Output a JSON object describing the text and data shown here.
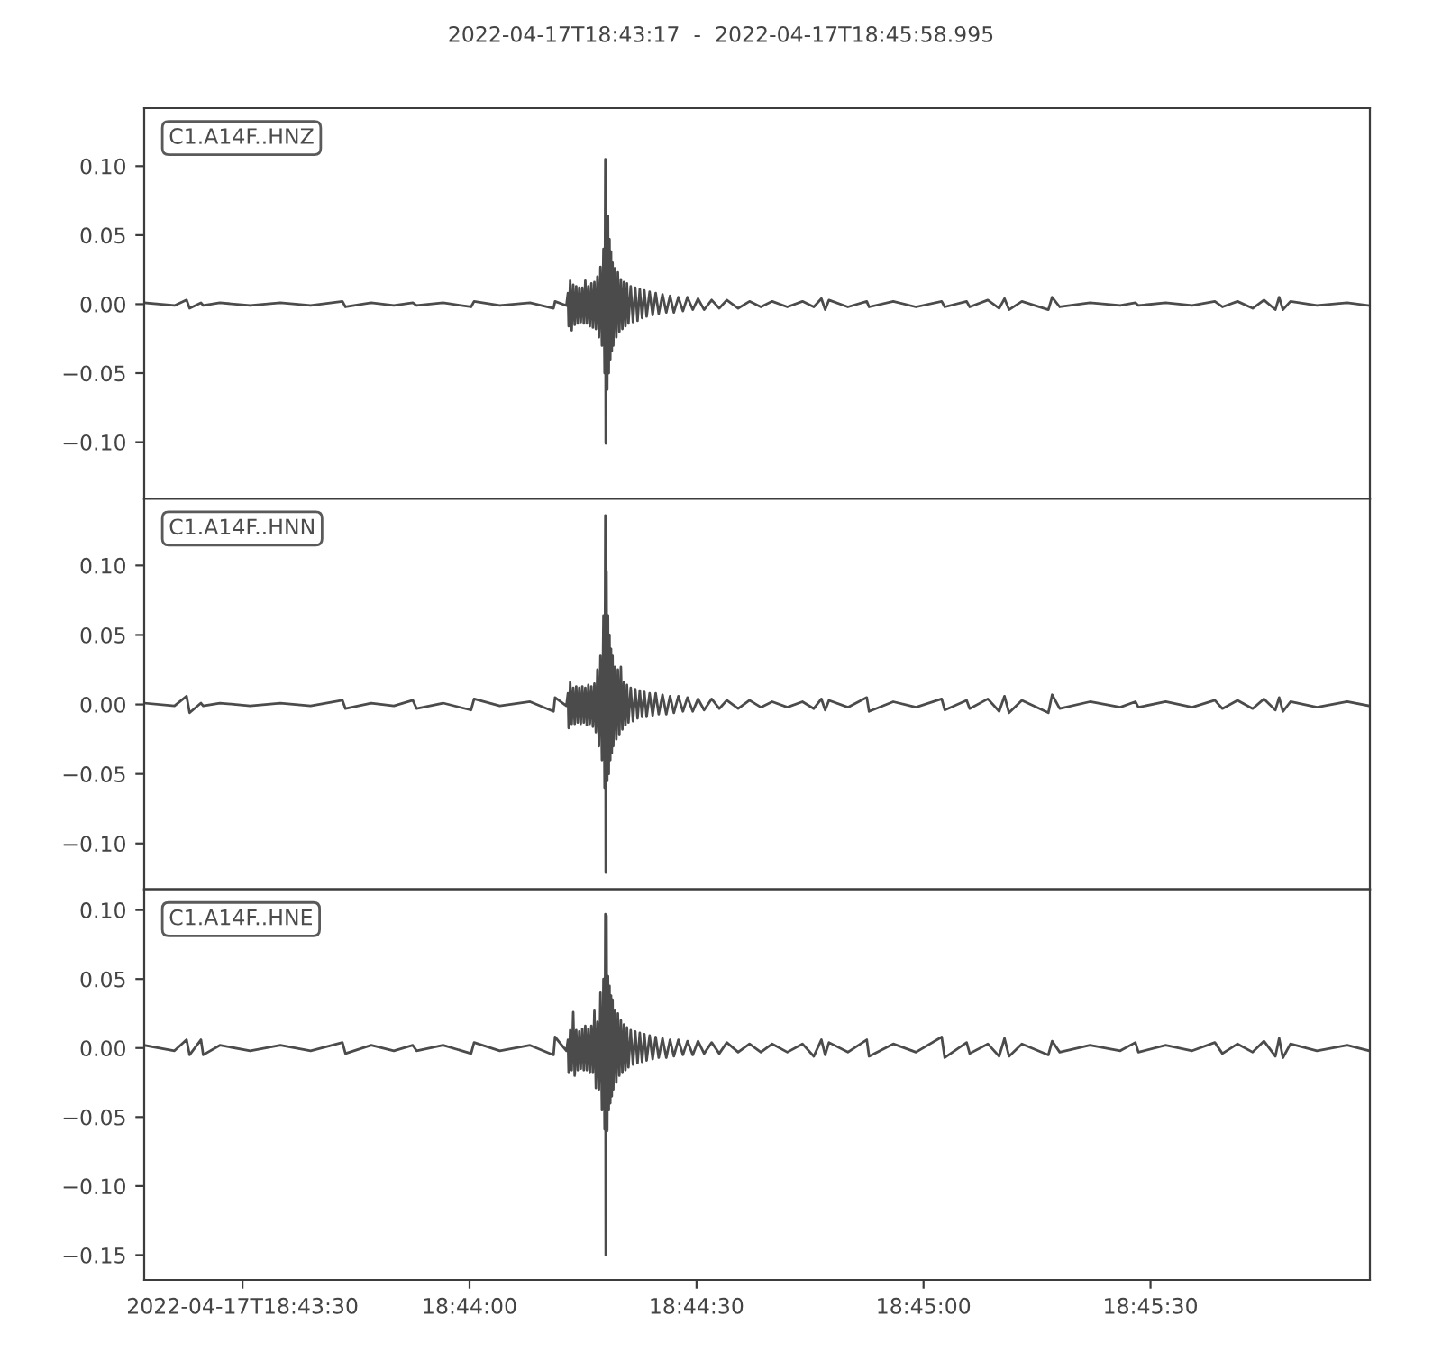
{
  "chart_data": [
    {
      "type": "line",
      "title": "2022-04-17T18:43:17  -  2022-04-17T18:45:58.995",
      "line_style": "solid",
      "tick_labels": "y",
      "xlim": [
        "2022-04-17T18:43:17",
        "2022-04-17T18:45:58.995"
      ],
      "ylim": [
        -0.141,
        0.142
      ],
      "yticks": [
        {
          "value": -0.1,
          "label": "−0.10"
        },
        {
          "value": -0.05,
          "label": "−0.05"
        },
        {
          "value": 0.0,
          "label": "0.00"
        },
        {
          "value": 0.05,
          "label": "0.05"
        },
        {
          "value": 0.1,
          "label": "0.10"
        }
      ],
      "x": [
        "2022-04-17T18:43:17",
        "2022-04-17T18:43:21",
        "2022-04-17T18:43:22.6",
        "2022-04-17T18:43:23",
        "2022-04-17T18:43:24.5",
        "2022-04-17T18:43:24.8",
        "2022-04-17T18:43:27",
        "2022-04-17T18:43:31",
        "2022-04-17T18:43:35",
        "2022-04-17T18:43:39",
        "2022-04-17T18:43:43.2",
        "2022-04-17T18:43:43.6",
        "2022-04-17T18:43:47",
        "2022-04-17T18:43:50",
        "2022-04-17T18:43:52.5",
        "2022-04-17T18:43:53",
        "2022-04-17T18:43:56.5",
        "2022-04-17T18:44:00.2",
        "2022-04-17T18:44:00.6",
        "2022-04-17T18:44:04",
        "2022-04-17T18:44:08",
        "2022-04-17T18:44:11.1",
        "2022-04-17T18:44:11.3",
        "2022-04-17T18:44:12.8",
        "2022-04-17T18:44:13",
        "2022-04-17T18:44:13.1",
        "2022-04-17T18:44:13.3",
        "2022-04-17T18:44:13.5",
        "2022-04-17T18:44:13.7",
        "2022-04-17T18:44:13.9",
        "2022-04-17T18:44:14.1",
        "2022-04-17T18:44:14.3",
        "2022-04-17T18:44:14.5",
        "2022-04-17T18:44:14.7",
        "2022-04-17T18:44:14.9",
        "2022-04-17T18:44:15.1",
        "2022-04-17T18:44:15.3",
        "2022-04-17T18:44:15.5",
        "2022-04-17T18:44:15.7",
        "2022-04-17T18:44:15.9",
        "2022-04-17T18:44:16.1",
        "2022-04-17T18:44:16.3",
        "2022-04-17T18:44:16.5",
        "2022-04-17T18:44:16.7",
        "2022-04-17T18:44:16.9",
        "2022-04-17T18:44:17.1",
        "2022-04-17T18:44:17.3",
        "2022-04-17T18:44:17.5",
        "2022-04-17T18:44:17.7",
        "2022-04-17T18:44:17.85",
        "2022-04-17T18:44:17.95",
        "2022-04-17T18:44:18",
        "2022-04-17T18:44:18.1",
        "2022-04-17T18:44:18.2",
        "2022-04-17T18:44:18.3",
        "2022-04-17T18:44:18.4",
        "2022-04-17T18:44:18.5",
        "2022-04-17T18:44:18.6",
        "2022-04-17T18:44:18.7",
        "2022-04-17T18:44:18.8",
        "2022-04-17T18:44:18.9",
        "2022-04-17T18:44:19",
        "2022-04-17T18:44:19.2",
        "2022-04-17T18:44:19.4",
        "2022-04-17T18:44:19.6",
        "2022-04-17T18:44:19.8",
        "2022-04-17T18:44:20",
        "2022-04-17T18:44:20.2",
        "2022-04-17T18:44:20.4",
        "2022-04-17T18:44:20.6",
        "2022-04-17T18:44:20.8",
        "2022-04-17T18:44:21",
        "2022-04-17T18:44:21.3",
        "2022-04-17T18:44:21.6",
        "2022-04-17T18:44:21.9",
        "2022-04-17T18:44:22.2",
        "2022-04-17T18:44:22.5",
        "2022-04-17T18:44:22.8",
        "2022-04-17T18:44:23.1",
        "2022-04-17T18:44:23.4",
        "2022-04-17T18:44:23.8",
        "2022-04-17T18:44:24.2",
        "2022-04-17T18:44:24.6",
        "2022-04-17T18:44:25",
        "2022-04-17T18:44:25.5",
        "2022-04-17T18:44:26",
        "2022-04-17T18:44:26.5",
        "2022-04-17T18:44:27",
        "2022-04-17T18:44:27.6",
        "2022-04-17T18:44:28.2",
        "2022-04-17T18:44:28.8",
        "2022-04-17T18:44:29.5",
        "2022-04-17T18:44:30.2",
        "2022-04-17T18:44:31",
        "2022-04-17T18:44:32",
        "2022-04-17T18:44:33",
        "2022-04-17T18:44:34",
        "2022-04-17T18:44:35.5",
        "2022-04-17T18:44:37",
        "2022-04-17T18:44:38.5",
        "2022-04-17T18:44:40",
        "2022-04-17T18:44:42",
        "2022-04-17T18:44:44",
        "2022-04-17T18:44:45.5",
        "2022-04-17T18:44:46.5",
        "2022-04-17T18:44:47",
        "2022-04-17T18:44:47.5",
        "2022-04-17T18:44:50",
        "2022-04-17T18:44:52.5",
        "2022-04-17T18:44:52.8",
        "2022-04-17T18:44:56",
        "2022-04-17T18:44:59",
        "2022-04-17T18:45:02.4",
        "2022-04-17T18:45:02.8",
        "2022-04-17T18:45:05.7",
        "2022-04-17T18:45:06.1",
        "2022-04-17T18:45:08.5",
        "2022-04-17T18:45:10",
        "2022-04-17T18:45:10.7",
        "2022-04-17T18:45:11.3",
        "2022-04-17T18:45:13",
        "2022-04-17T18:45:16.5",
        "2022-04-17T18:45:17",
        "2022-04-17T18:45:18",
        "2022-04-17T18:45:22",
        "2022-04-17T18:45:26",
        "2022-04-17T18:45:28",
        "2022-04-17T18:45:28.4",
        "2022-04-17T18:45:32",
        "2022-04-17T18:45:35.5",
        "2022-04-17T18:45:38.5",
        "2022-04-17T18:45:39.5",
        "2022-04-17T18:45:41.5",
        "2022-04-17T18:45:43.5",
        "2022-04-17T18:45:45",
        "2022-04-17T18:45:46.5",
        "2022-04-17T18:45:47",
        "2022-04-17T18:45:47.5",
        "2022-04-17T18:45:48.5",
        "2022-04-17T18:45:52",
        "2022-04-17T18:45:56",
        "2022-04-17T18:45:58.9"
      ],
      "series": [
        {
          "name": "C1.A14F..HNZ",
          "color": "#4b4b4b",
          "values": [
            0.001,
            -0.001,
            0.003,
            -0.003,
            0.001,
            -0.001,
            0.001,
            -0.001,
            0.001,
            -0.001,
            0.002,
            -0.002,
            0.001,
            -0.001,
            0.001,
            -0.001,
            0.001,
            -0.002,
            0.002,
            -0.001,
            0.001,
            -0.003,
            0.002,
            -0.001,
            0.008,
            -0.016,
            0.017,
            -0.019,
            0.014,
            -0.015,
            0.013,
            -0.014,
            0.012,
            -0.013,
            0.012,
            -0.014,
            0.017,
            -0.014,
            0.013,
            -0.016,
            0.015,
            -0.017,
            0.016,
            -0.018,
            0.02,
            -0.024,
            0.027,
            -0.03,
            0.04,
            -0.05,
            0.105,
            -0.101,
            0.06,
            -0.062,
            0.064,
            -0.05,
            0.047,
            -0.04,
            0.038,
            -0.034,
            0.03,
            -0.03,
            0.026,
            -0.024,
            0.023,
            -0.02,
            0.018,
            -0.018,
            0.016,
            -0.016,
            0.015,
            -0.014,
            0.013,
            -0.013,
            0.012,
            -0.012,
            0.011,
            -0.01,
            0.01,
            -0.009,
            0.009,
            -0.008,
            0.008,
            -0.007,
            0.007,
            -0.006,
            0.006,
            -0.006,
            0.005,
            -0.005,
            0.005,
            -0.004,
            0.004,
            -0.004,
            0.003,
            -0.003,
            0.003,
            -0.003,
            0.002,
            -0.002,
            0.002,
            -0.002,
            0.002,
            -0.002,
            0.004,
            -0.004,
            0.003,
            -0.002,
            0.002,
            -0.002,
            0.002,
            -0.002,
            0.002,
            -0.002,
            0.002,
            -0.002,
            0.003,
            -0.003,
            0.004,
            -0.004,
            0.002,
            -0.004,
            0.005,
            -0.002,
            0.001,
            -0.001,
            0.001,
            -0.001,
            0.001,
            -0.001,
            0.002,
            -0.002,
            0.002,
            -0.003,
            0.003,
            -0.004,
            0.005,
            -0.004,
            0.002,
            -0.001,
            0.001,
            -0.001
          ]
        }
      ]
    },
    {
      "type": "line",
      "line_style": "solid",
      "tick_labels": "y",
      "xlim": [
        "2022-04-17T18:43:17",
        "2022-04-17T18:45:58.995"
      ],
      "ylim": [
        -0.133,
        0.148
      ],
      "yticks": [
        {
          "value": -0.1,
          "label": "−0.10"
        },
        {
          "value": -0.05,
          "label": "−0.05"
        },
        {
          "value": 0.0,
          "label": "0.00"
        },
        {
          "value": 0.05,
          "label": "0.05"
        },
        {
          "value": 0.1,
          "label": "0.10"
        }
      ],
      "x": [
        "2022-04-17T18:43:17",
        "2022-04-17T18:43:21",
        "2022-04-17T18:43:22.6",
        "2022-04-17T18:43:23",
        "2022-04-17T18:43:24.5",
        "2022-04-17T18:43:24.8",
        "2022-04-17T18:43:27",
        "2022-04-17T18:43:31",
        "2022-04-17T18:43:35",
        "2022-04-17T18:43:39",
        "2022-04-17T18:43:43.2",
        "2022-04-17T18:43:43.6",
        "2022-04-17T18:43:47",
        "2022-04-17T18:43:50",
        "2022-04-17T18:43:52.5",
        "2022-04-17T18:43:53",
        "2022-04-17T18:43:56.5",
        "2022-04-17T18:44:00.2",
        "2022-04-17T18:44:00.6",
        "2022-04-17T18:44:04",
        "2022-04-17T18:44:08",
        "2022-04-17T18:44:11.1",
        "2022-04-17T18:44:11.3",
        "2022-04-17T18:44:12.8",
        "2022-04-17T18:44:13",
        "2022-04-17T18:44:13.1",
        "2022-04-17T18:44:13.3",
        "2022-04-17T18:44:13.5",
        "2022-04-17T18:44:13.7",
        "2022-04-17T18:44:13.9",
        "2022-04-17T18:44:14.1",
        "2022-04-17T18:44:14.3",
        "2022-04-17T18:44:14.5",
        "2022-04-17T18:44:14.7",
        "2022-04-17T18:44:14.9",
        "2022-04-17T18:44:15.1",
        "2022-04-17T18:44:15.3",
        "2022-04-17T18:44:15.5",
        "2022-04-17T18:44:15.7",
        "2022-04-17T18:44:15.9",
        "2022-04-17T18:44:16.1",
        "2022-04-17T18:44:16.3",
        "2022-04-17T18:44:16.5",
        "2022-04-17T18:44:16.7",
        "2022-04-17T18:44:16.9",
        "2022-04-17T18:44:17.1",
        "2022-04-17T18:44:17.3",
        "2022-04-17T18:44:17.5",
        "2022-04-17T18:44:17.7",
        "2022-04-17T18:44:17.85",
        "2022-04-17T18:44:17.95",
        "2022-04-17T18:44:18",
        "2022-04-17T18:44:18.1",
        "2022-04-17T18:44:18.2",
        "2022-04-17T18:44:18.3",
        "2022-04-17T18:44:18.4",
        "2022-04-17T18:44:18.5",
        "2022-04-17T18:44:18.6",
        "2022-04-17T18:44:18.7",
        "2022-04-17T18:44:18.8",
        "2022-04-17T18:44:18.9",
        "2022-04-17T18:44:19",
        "2022-04-17T18:44:19.2",
        "2022-04-17T18:44:19.4",
        "2022-04-17T18:44:19.6",
        "2022-04-17T18:44:19.8",
        "2022-04-17T18:44:20",
        "2022-04-17T18:44:20.2",
        "2022-04-17T18:44:20.4",
        "2022-04-17T18:44:20.6",
        "2022-04-17T18:44:20.8",
        "2022-04-17T18:44:21",
        "2022-04-17T18:44:21.3",
        "2022-04-17T18:44:21.6",
        "2022-04-17T18:44:21.9",
        "2022-04-17T18:44:22.2",
        "2022-04-17T18:44:22.5",
        "2022-04-17T18:44:22.8",
        "2022-04-17T18:44:23.1",
        "2022-04-17T18:44:23.4",
        "2022-04-17T18:44:23.8",
        "2022-04-17T18:44:24.2",
        "2022-04-17T18:44:24.6",
        "2022-04-17T18:44:25",
        "2022-04-17T18:44:25.5",
        "2022-04-17T18:44:26",
        "2022-04-17T18:44:26.5",
        "2022-04-17T18:44:27",
        "2022-04-17T18:44:27.6",
        "2022-04-17T18:44:28.2",
        "2022-04-17T18:44:28.8",
        "2022-04-17T18:44:29.5",
        "2022-04-17T18:44:30.2",
        "2022-04-17T18:44:31",
        "2022-04-17T18:44:32",
        "2022-04-17T18:44:33",
        "2022-04-17T18:44:34",
        "2022-04-17T18:44:35.5",
        "2022-04-17T18:44:37",
        "2022-04-17T18:44:38.5",
        "2022-04-17T18:44:40",
        "2022-04-17T18:44:42",
        "2022-04-17T18:44:44",
        "2022-04-17T18:44:45.5",
        "2022-04-17T18:44:46.5",
        "2022-04-17T18:44:47",
        "2022-04-17T18:44:47.5",
        "2022-04-17T18:44:50",
        "2022-04-17T18:44:52.5",
        "2022-04-17T18:44:52.8",
        "2022-04-17T18:44:56",
        "2022-04-17T18:44:59",
        "2022-04-17T18:45:02.4",
        "2022-04-17T18:45:02.8",
        "2022-04-17T18:45:05.7",
        "2022-04-17T18:45:06.1",
        "2022-04-17T18:45:08.5",
        "2022-04-17T18:45:10",
        "2022-04-17T18:45:10.7",
        "2022-04-17T18:45:11.3",
        "2022-04-17T18:45:13",
        "2022-04-17T18:45:16.5",
        "2022-04-17T18:45:17",
        "2022-04-17T18:45:18",
        "2022-04-17T18:45:22",
        "2022-04-17T18:45:26",
        "2022-04-17T18:45:28",
        "2022-04-17T18:45:28.4",
        "2022-04-17T18:45:32",
        "2022-04-17T18:45:35.5",
        "2022-04-17T18:45:38.5",
        "2022-04-17T18:45:39.5",
        "2022-04-17T18:45:41.5",
        "2022-04-17T18:45:43.5",
        "2022-04-17T18:45:45",
        "2022-04-17T18:45:46.5",
        "2022-04-17T18:45:47",
        "2022-04-17T18:45:47.5",
        "2022-04-17T18:45:48.5",
        "2022-04-17T18:45:52",
        "2022-04-17T18:45:56",
        "2022-04-17T18:45:58.9"
      ],
      "series": [
        {
          "name": "C1.A14F..HNN",
          "color": "#4b4b4b",
          "values": [
            0.001,
            -0.001,
            0.006,
            -0.006,
            0.001,
            -0.001,
            0.001,
            -0.001,
            0.001,
            -0.001,
            0.003,
            -0.003,
            0.001,
            -0.001,
            0.003,
            -0.003,
            0.001,
            -0.004,
            0.004,
            -0.001,
            0.002,
            -0.005,
            0.005,
            -0.001,
            0.008,
            -0.017,
            0.016,
            -0.014,
            0.012,
            -0.014,
            0.013,
            -0.013,
            0.012,
            -0.014,
            0.013,
            -0.013,
            0.012,
            -0.015,
            0.014,
            -0.014,
            0.013,
            -0.016,
            0.015,
            -0.02,
            0.025,
            -0.03,
            0.035,
            -0.04,
            0.064,
            -0.06,
            0.136,
            -0.121,
            0.096,
            -0.055,
            0.064,
            -0.05,
            0.05,
            -0.04,
            0.04,
            -0.035,
            0.035,
            -0.03,
            0.027,
            -0.025,
            0.025,
            -0.022,
            0.027,
            -0.018,
            0.016,
            -0.015,
            0.014,
            -0.013,
            0.012,
            -0.012,
            0.011,
            -0.01,
            0.01,
            -0.009,
            0.009,
            -0.009,
            0.008,
            -0.008,
            0.008,
            -0.007,
            0.007,
            -0.007,
            0.006,
            -0.006,
            0.006,
            -0.005,
            0.005,
            -0.005,
            0.004,
            -0.004,
            0.004,
            -0.003,
            0.003,
            -0.003,
            0.003,
            -0.002,
            0.002,
            -0.002,
            0.002,
            -0.003,
            0.004,
            -0.004,
            0.003,
            -0.002,
            0.005,
            -0.005,
            0.002,
            -0.002,
            0.004,
            -0.004,
            0.003,
            -0.003,
            0.004,
            -0.005,
            0.006,
            -0.006,
            0.003,
            -0.006,
            0.007,
            -0.003,
            0.002,
            -0.002,
            0.002,
            -0.002,
            0.002,
            -0.002,
            0.003,
            -0.003,
            0.003,
            -0.003,
            0.004,
            -0.004,
            0.005,
            -0.005,
            0.002,
            -0.002,
            0.002,
            -0.001
          ]
        }
      ]
    },
    {
      "type": "line",
      "line_style": "solid",
      "xlim": [
        "2022-04-17T18:43:17",
        "2022-04-17T18:45:58.995"
      ],
      "ylim": [
        -0.168,
        0.115
      ],
      "xticks": [
        {
          "value": "2022-04-17T18:43:30",
          "label": "2022-04-17T18:43:30"
        },
        {
          "value": "2022-04-17T18:44:00",
          "label": "18:44:00"
        },
        {
          "value": "2022-04-17T18:44:30",
          "label": "18:44:30"
        },
        {
          "value": "2022-04-17T18:45:00",
          "label": "18:45:00"
        },
        {
          "value": "2022-04-17T18:45:30",
          "label": "18:45:30"
        }
      ],
      "yticks": [
        {
          "value": -0.15,
          "label": "−0.15"
        },
        {
          "value": -0.1,
          "label": "−0.10"
        },
        {
          "value": -0.05,
          "label": "−0.05"
        },
        {
          "value": 0.0,
          "label": "0.00"
        },
        {
          "value": 0.05,
          "label": "0.05"
        },
        {
          "value": 0.1,
          "label": "0.10"
        }
      ],
      "x": [
        "2022-04-17T18:43:17",
        "2022-04-17T18:43:21",
        "2022-04-17T18:43:22.6",
        "2022-04-17T18:43:23",
        "2022-04-17T18:43:24.5",
        "2022-04-17T18:43:24.8",
        "2022-04-17T18:43:27",
        "2022-04-17T18:43:31",
        "2022-04-17T18:43:35",
        "2022-04-17T18:43:39",
        "2022-04-17T18:43:43.2",
        "2022-04-17T18:43:43.6",
        "2022-04-17T18:43:47",
        "2022-04-17T18:43:50",
        "2022-04-17T18:43:52.5",
        "2022-04-17T18:43:53",
        "2022-04-17T18:43:56.5",
        "2022-04-17T18:44:00.2",
        "2022-04-17T18:44:00.6",
        "2022-04-17T18:44:04",
        "2022-04-17T18:44:08",
        "2022-04-17T18:44:11.1",
        "2022-04-17T18:44:11.3",
        "2022-04-17T18:44:12.8",
        "2022-04-17T18:44:13",
        "2022-04-17T18:44:13.1",
        "2022-04-17T18:44:13.3",
        "2022-04-17T18:44:13.5",
        "2022-04-17T18:44:13.7",
        "2022-04-17T18:44:13.9",
        "2022-04-17T18:44:14.1",
        "2022-04-17T18:44:14.3",
        "2022-04-17T18:44:14.5",
        "2022-04-17T18:44:14.7",
        "2022-04-17T18:44:14.9",
        "2022-04-17T18:44:15.1",
        "2022-04-17T18:44:15.3",
        "2022-04-17T18:44:15.5",
        "2022-04-17T18:44:15.7",
        "2022-04-17T18:44:15.9",
        "2022-04-17T18:44:16.1",
        "2022-04-17T18:44:16.3",
        "2022-04-17T18:44:16.5",
        "2022-04-17T18:44:16.7",
        "2022-04-17T18:44:16.9",
        "2022-04-17T18:44:17.1",
        "2022-04-17T18:44:17.3",
        "2022-04-17T18:44:17.5",
        "2022-04-17T18:44:17.7",
        "2022-04-17T18:44:17.85",
        "2022-04-17T18:44:17.95",
        "2022-04-17T18:44:18",
        "2022-04-17T18:44:18.1",
        "2022-04-17T18:44:18.2",
        "2022-04-17T18:44:18.3",
        "2022-04-17T18:44:18.4",
        "2022-04-17T18:44:18.5",
        "2022-04-17T18:44:18.6",
        "2022-04-17T18:44:18.7",
        "2022-04-17T18:44:18.8",
        "2022-04-17T18:44:18.9",
        "2022-04-17T18:44:19",
        "2022-04-17T18:44:19.2",
        "2022-04-17T18:44:19.4",
        "2022-04-17T18:44:19.6",
        "2022-04-17T18:44:19.8",
        "2022-04-17T18:44:20",
        "2022-04-17T18:44:20.2",
        "2022-04-17T18:44:20.4",
        "2022-04-17T18:44:20.6",
        "2022-04-17T18:44:20.8",
        "2022-04-17T18:44:21",
        "2022-04-17T18:44:21.3",
        "2022-04-17T18:44:21.6",
        "2022-04-17T18:44:21.9",
        "2022-04-17T18:44:22.2",
        "2022-04-17T18:44:22.5",
        "2022-04-17T18:44:22.8",
        "2022-04-17T18:44:23.1",
        "2022-04-17T18:44:23.4",
        "2022-04-17T18:44:23.8",
        "2022-04-17T18:44:24.2",
        "2022-04-17T18:44:24.6",
        "2022-04-17T18:44:25",
        "2022-04-17T18:44:25.5",
        "2022-04-17T18:44:26",
        "2022-04-17T18:44:26.5",
        "2022-04-17T18:44:27",
        "2022-04-17T18:44:27.6",
        "2022-04-17T18:44:28.2",
        "2022-04-17T18:44:28.8",
        "2022-04-17T18:44:29.5",
        "2022-04-17T18:44:30.2",
        "2022-04-17T18:44:31",
        "2022-04-17T18:44:32",
        "2022-04-17T18:44:33",
        "2022-04-17T18:44:34",
        "2022-04-17T18:44:35.5",
        "2022-04-17T18:44:37",
        "2022-04-17T18:44:38.5",
        "2022-04-17T18:44:40",
        "2022-04-17T18:44:42",
        "2022-04-17T18:44:44",
        "2022-04-17T18:44:45.5",
        "2022-04-17T18:44:46.5",
        "2022-04-17T18:44:47",
        "2022-04-17T18:44:47.5",
        "2022-04-17T18:44:50",
        "2022-04-17T18:44:52.5",
        "2022-04-17T18:44:52.8",
        "2022-04-17T18:44:56",
        "2022-04-17T18:44:59",
        "2022-04-17T18:45:02.4",
        "2022-04-17T18:45:02.8",
        "2022-04-17T18:45:05.7",
        "2022-04-17T18:45:06.1",
        "2022-04-17T18:45:08.5",
        "2022-04-17T18:45:10",
        "2022-04-17T18:45:10.7",
        "2022-04-17T18:45:11.3",
        "2022-04-17T18:45:13",
        "2022-04-17T18:45:16.5",
        "2022-04-17T18:45:17",
        "2022-04-17T18:45:18",
        "2022-04-17T18:45:22",
        "2022-04-17T18:45:26",
        "2022-04-17T18:45:28",
        "2022-04-17T18:45:28.4",
        "2022-04-17T18:45:32",
        "2022-04-17T18:45:35.5",
        "2022-04-17T18:45:38.5",
        "2022-04-17T18:45:39.5",
        "2022-04-17T18:45:41.5",
        "2022-04-17T18:45:43.5",
        "2022-04-17T18:45:45",
        "2022-04-17T18:45:46.5",
        "2022-04-17T18:45:47",
        "2022-04-17T18:45:47.5",
        "2022-04-17T18:45:48.5",
        "2022-04-17T18:45:52",
        "2022-04-17T18:45:56",
        "2022-04-17T18:45:58.9"
      ],
      "series": [
        {
          "name": "C1.A14F..HNE",
          "color": "#4b4b4b",
          "values": [
            0.002,
            -0.002,
            0.006,
            -0.005,
            0.006,
            -0.005,
            0.002,
            -0.002,
            0.002,
            -0.002,
            0.004,
            -0.004,
            0.002,
            -0.002,
            0.002,
            -0.002,
            0.002,
            -0.004,
            0.004,
            -0.002,
            0.002,
            -0.005,
            0.008,
            -0.002,
            0.006,
            -0.018,
            0.013,
            -0.016,
            0.026,
            -0.02,
            0.013,
            -0.016,
            0.012,
            -0.015,
            0.014,
            -0.016,
            0.016,
            -0.016,
            0.014,
            -0.018,
            0.016,
            -0.018,
            0.027,
            -0.029,
            0.019,
            -0.03,
            0.04,
            -0.045,
            0.05,
            -0.059,
            0.097,
            -0.15,
            0.096,
            -0.06,
            0.052,
            -0.045,
            0.045,
            -0.04,
            0.038,
            -0.035,
            0.035,
            -0.03,
            0.027,
            -0.025,
            0.025,
            -0.02,
            0.02,
            -0.018,
            0.017,
            -0.016,
            0.015,
            -0.014,
            0.013,
            -0.012,
            0.012,
            -0.011,
            0.011,
            -0.01,
            0.01,
            -0.009,
            0.009,
            -0.008,
            0.008,
            -0.007,
            0.007,
            -0.007,
            0.006,
            -0.006,
            0.006,
            -0.005,
            0.005,
            -0.005,
            0.005,
            -0.004,
            0.004,
            -0.004,
            0.004,
            -0.003,
            0.003,
            -0.003,
            0.003,
            -0.003,
            0.003,
            -0.006,
            0.006,
            -0.005,
            0.004,
            -0.003,
            0.006,
            -0.006,
            0.003,
            -0.003,
            0.008,
            -0.007,
            0.004,
            -0.004,
            0.003,
            -0.006,
            0.007,
            -0.006,
            0.003,
            -0.005,
            0.005,
            -0.003,
            0.002,
            -0.002,
            0.004,
            -0.003,
            0.002,
            -0.002,
            0.004,
            -0.004,
            0.003,
            -0.003,
            0.005,
            -0.006,
            0.007,
            -0.007,
            0.003,
            -0.002,
            0.002,
            -0.002
          ]
        }
      ]
    }
  ]
}
